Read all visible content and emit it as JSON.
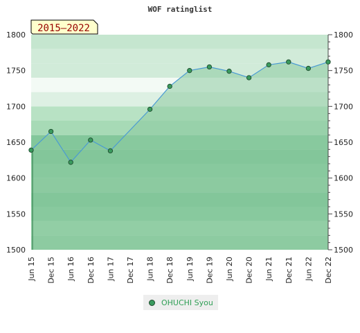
{
  "chart_data": {
    "type": "area",
    "title": "WOF ratinglist",
    "badge": "2015–2022",
    "ylim": [
      1500,
      1800
    ],
    "yticks": [
      1500,
      1550,
      1600,
      1650,
      1700,
      1750,
      1800
    ],
    "categories": [
      "Jun 15",
      "Dec 15",
      "Jun 16",
      "Dec 16",
      "Jun 17",
      "Dec 17",
      "Jun 18",
      "Dec 18",
      "Jun 19",
      "Dec 19",
      "Jun 20",
      "Dec 20",
      "Jun 21",
      "Dec 21",
      "Jun 22",
      "Dec 22"
    ],
    "series": [
      {
        "name": "OHUCHI Syou",
        "values": [
          1639,
          1665,
          1622,
          1653,
          1638,
          null,
          1696,
          1728,
          1750,
          1755,
          1749,
          1740,
          1758,
          1762,
          1753,
          1762
        ]
      }
    ],
    "legend_position": "bottom",
    "colors": {
      "line": "#4a9ad4",
      "area": "#8ccba0",
      "marker": "#3a9a5e",
      "marker_edge": "#1d4a2c"
    },
    "band_colors": [
      "#8fcda3",
      "#9ad3ab",
      "#83c79b",
      "#79c292",
      "#8ccba0",
      "#83c79b",
      "#79c292",
      "#83c79b",
      "#a7dab6",
      "#b8e2c4",
      "#ddf0e3",
      "#f3faf5",
      "#d1ebd9",
      "#d1ebd9",
      "#c5e6cf"
    ]
  }
}
